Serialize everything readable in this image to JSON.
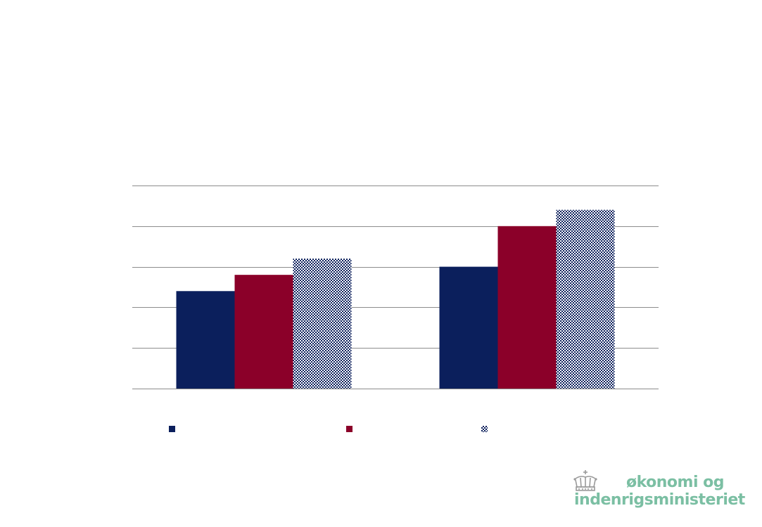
{
  "colors": {
    "series1": "#0b1f5c",
    "series2": "#8b0029",
    "series3_pattern": "#0b1f5c",
    "gridline": "#8c8c8c",
    "logo_text": "#7bbfa3",
    "logo_crown": "#9a9a9a"
  },
  "chart_data": {
    "type": "bar",
    "title": "",
    "xlabel": "",
    "ylabel": "",
    "ylim": [
      0,
      25
    ],
    "gridlines": [
      0,
      5,
      10,
      15,
      20,
      25
    ],
    "grid": true,
    "legend_position": "bottom",
    "categories": [
      "",
      ""
    ],
    "series": [
      {
        "values": [
          12,
          15
        ],
        "fill": "solid",
        "color_key": "series1",
        "legend_icon": "square-icon"
      },
      {
        "values": [
          14,
          20
        ],
        "fill": "solid",
        "color_key": "series2",
        "legend_icon": "square-icon"
      },
      {
        "values": [
          16,
          22
        ],
        "fill": "pattern",
        "color_key": "series3_pattern",
        "legend_icon": "hatched-square-icon"
      }
    ]
  },
  "logo": {
    "line1": "økonomi og",
    "line2": "indenrigsministeriet",
    "icon": "crown-icon"
  }
}
